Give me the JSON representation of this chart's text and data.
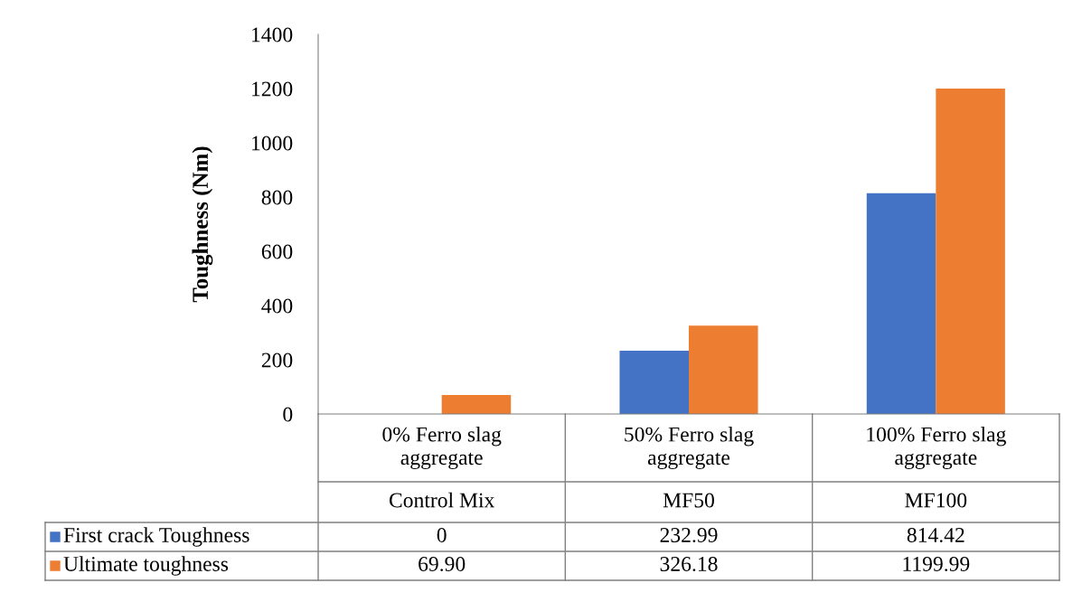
{
  "chart_data": {
    "type": "bar",
    "ylabel": "Toughness (Nm)",
    "categories": [
      "0% Ferro slag aggregate\nControl Mix",
      "50% Ferro slag aggregate\nMF50",
      "100% Ferro slag aggregate\nMF100"
    ],
    "series": [
      {
        "name": "First crack Toughness",
        "color": "#4472c4",
        "values": [
          0,
          232.99,
          814.42
        ],
        "value_labels": [
          "0",
          "232.99",
          "814.42"
        ]
      },
      {
        "name": "Ultimate toughness",
        "color": "#ed7d31",
        "values": [
          69.9,
          326.18,
          1199.99
        ],
        "value_labels": [
          "69.90",
          "326.18",
          "1199.99"
        ]
      }
    ],
    "ylim": [
      0,
      1400
    ],
    "yticks": [
      0,
      200,
      400,
      600,
      800,
      1000,
      1200,
      1400
    ],
    "grid": false,
    "legend": "bottom"
  }
}
